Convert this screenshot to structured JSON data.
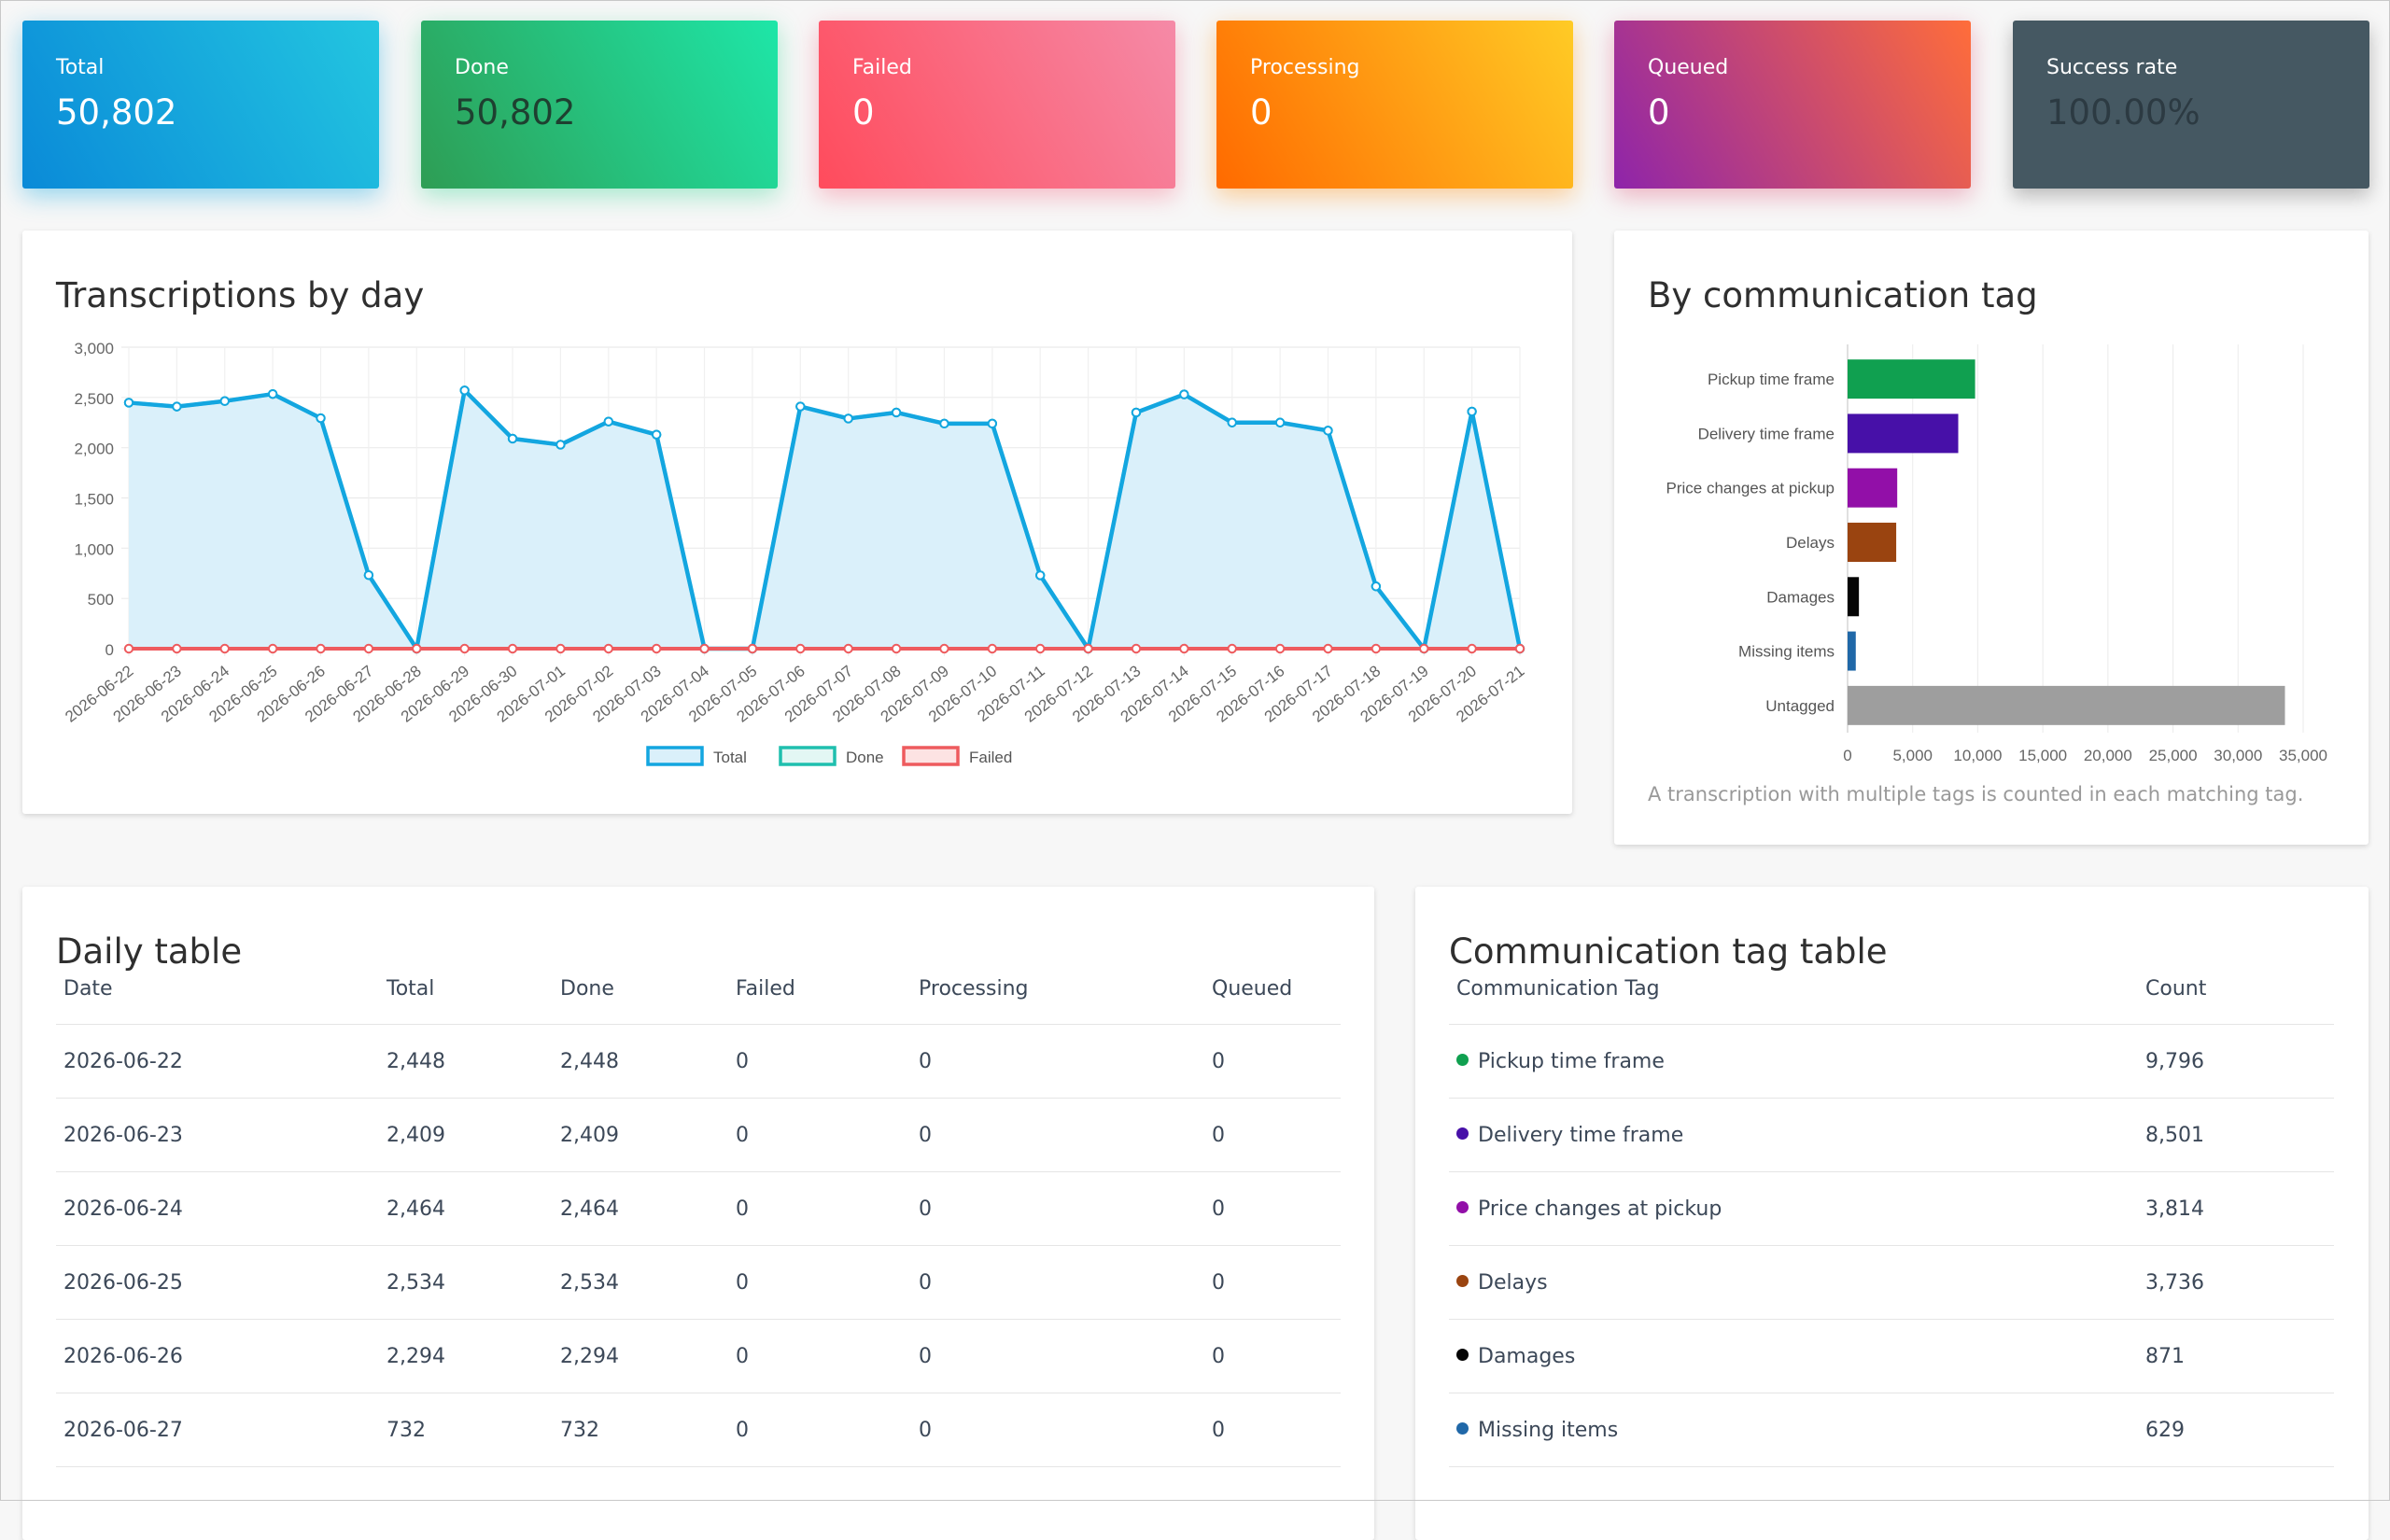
{
  "stats": {
    "total": {
      "label": "Total",
      "value": "50,802"
    },
    "done": {
      "label": "Done",
      "value": "50,802"
    },
    "failed": {
      "label": "Failed",
      "value": "0"
    },
    "processing": {
      "label": "Processing",
      "value": "0"
    },
    "queued": {
      "label": "Queued",
      "value": "0"
    },
    "success_rate": {
      "label": "Success rate",
      "value": "100.00%"
    }
  },
  "line_card": {
    "title": "Transcriptions by day"
  },
  "bar_card": {
    "title": "By communication tag",
    "note": "A transcription with multiple tags is counted in each matching tag."
  },
  "chart_data": [
    {
      "type": "line",
      "title": "Transcriptions by day",
      "x": [
        "2026-06-22",
        "2026-06-23",
        "2026-06-24",
        "2026-06-25",
        "2026-06-26",
        "2026-06-27",
        "2026-06-28",
        "2026-06-29",
        "2026-06-30",
        "2026-07-01",
        "2026-07-02",
        "2026-07-03",
        "2026-07-04",
        "2026-07-05",
        "2026-07-06",
        "2026-07-07",
        "2026-07-08",
        "2026-07-09",
        "2026-07-10",
        "2026-07-11",
        "2026-07-12",
        "2026-07-13",
        "2026-07-14",
        "2026-07-15",
        "2026-07-16",
        "2026-07-17",
        "2026-07-18",
        "2026-07-19",
        "2026-07-20",
        "2026-07-21"
      ],
      "series": [
        {
          "name": "Total",
          "color": "#13a6e0",
          "fill": "#daf0fa",
          "values": [
            2448,
            2409,
            2464,
            2534,
            2294,
            732,
            0,
            2570,
            2090,
            2030,
            2260,
            2130,
            0,
            0,
            2410,
            2290,
            2350,
            2240,
            2240,
            730,
            0,
            2350,
            2530,
            2250,
            2250,
            2170,
            620,
            0,
            2360,
            0
          ]
        },
        {
          "name": "Done",
          "color": "#1fbfae",
          "fill": "#e3f7f4",
          "values": [
            2448,
            2409,
            2464,
            2534,
            2294,
            732,
            0,
            2570,
            2090,
            2030,
            2260,
            2130,
            0,
            0,
            2410,
            2290,
            2350,
            2240,
            2240,
            730,
            0,
            2350,
            2530,
            2250,
            2250,
            2170,
            620,
            0,
            2360,
            0
          ]
        },
        {
          "name": "Failed",
          "color": "#ee5b5e",
          "fill": "#fde3e3",
          "values": [
            0,
            0,
            0,
            0,
            0,
            0,
            0,
            0,
            0,
            0,
            0,
            0,
            0,
            0,
            0,
            0,
            0,
            0,
            0,
            0,
            0,
            0,
            0,
            0,
            0,
            0,
            0,
            0,
            0,
            0
          ]
        }
      ],
      "ylim": [
        0,
        3000
      ],
      "yticks": [
        "0",
        "500",
        "1,000",
        "1,500",
        "2,000",
        "2,500",
        "3,000"
      ],
      "grid": true,
      "legend": "bottom"
    },
    {
      "type": "bar",
      "orientation": "horizontal",
      "title": "By communication tag",
      "categories": [
        "Pickup time frame",
        "Delivery time frame",
        "Price changes at pickup",
        "Delays",
        "Damages",
        "Missing items",
        "Untagged"
      ],
      "values": [
        9796,
        8501,
        3814,
        3736,
        871,
        629,
        33600
      ],
      "colors": [
        "#10a050",
        "#4710a8",
        "#920fa8",
        "#9a4410",
        "#050505",
        "#2068a8",
        "#9e9e9e"
      ],
      "xlim": [
        0,
        35000
      ],
      "xticks": [
        "0",
        "5,000",
        "10,000",
        "15,000",
        "20,000",
        "25,000",
        "30,000",
        "35,000"
      ],
      "grid": true
    }
  ],
  "daily_table": {
    "title": "Daily table",
    "columns": [
      "Date",
      "Total",
      "Done",
      "Failed",
      "Processing",
      "Queued"
    ],
    "rows": [
      [
        "2026-06-22",
        "2,448",
        "2,448",
        "0",
        "0",
        "0"
      ],
      [
        "2026-06-23",
        "2,409",
        "2,409",
        "0",
        "0",
        "0"
      ],
      [
        "2026-06-24",
        "2,464",
        "2,464",
        "0",
        "0",
        "0"
      ],
      [
        "2026-06-25",
        "2,534",
        "2,534",
        "0",
        "0",
        "0"
      ],
      [
        "2026-06-26",
        "2,294",
        "2,294",
        "0",
        "0",
        "0"
      ],
      [
        "2026-06-27",
        "732",
        "732",
        "0",
        "0",
        "0"
      ]
    ]
  },
  "tag_table": {
    "title": "Communication tag table",
    "columns": [
      "Communication Tag",
      "Count"
    ],
    "rows": [
      {
        "tag": "Pickup time frame",
        "count": "9,796",
        "color": "#10a050"
      },
      {
        "tag": "Delivery time frame",
        "count": "8,501",
        "color": "#4710a8"
      },
      {
        "tag": "Price changes at pickup",
        "count": "3,814",
        "color": "#920fa8"
      },
      {
        "tag": "Delays",
        "count": "3,736",
        "color": "#9a4410"
      },
      {
        "tag": "Damages",
        "count": "871",
        "color": "#050505"
      },
      {
        "tag": "Missing items",
        "count": "629",
        "color": "#2068a8"
      }
    ]
  }
}
